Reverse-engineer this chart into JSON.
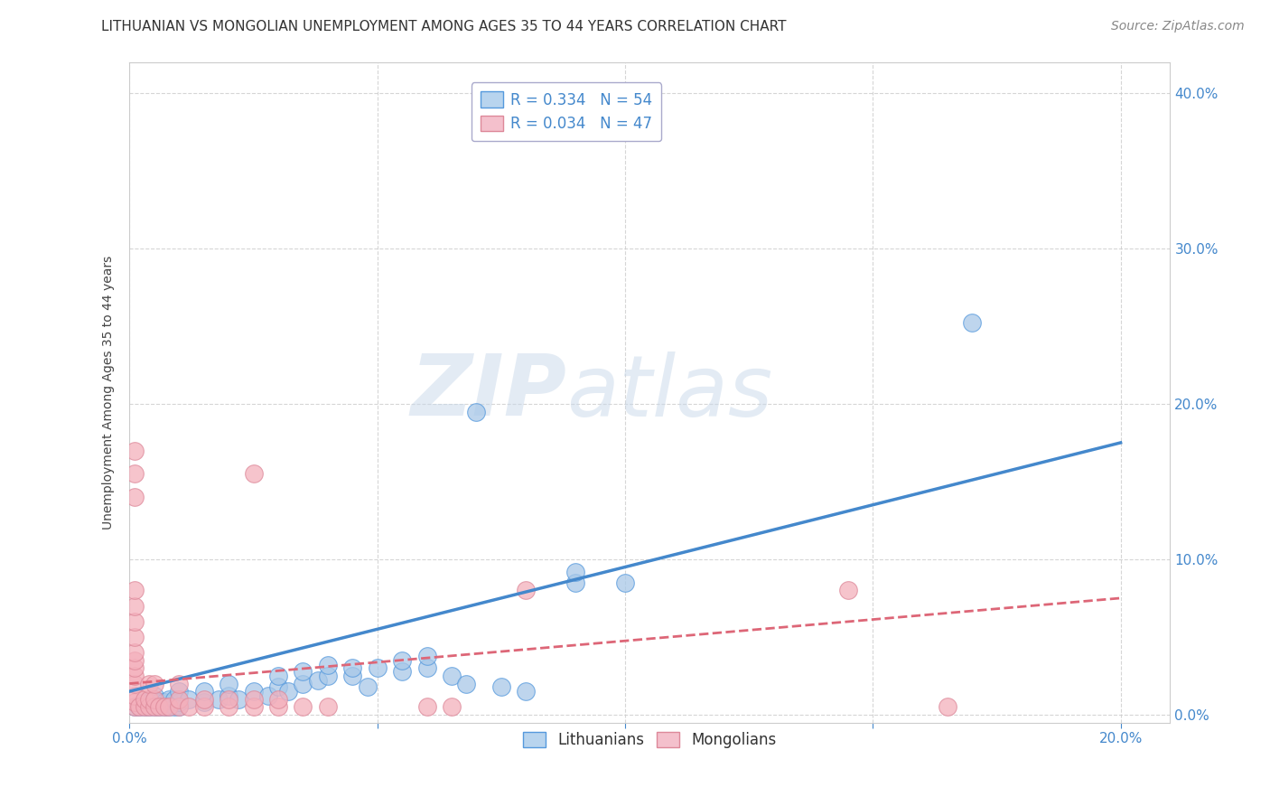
{
  "title": "LITHUANIAN VS MONGOLIAN UNEMPLOYMENT AMONG AGES 35 TO 44 YEARS CORRELATION CHART",
  "source": "Source: ZipAtlas.com",
  "xlim": [
    0.0,
    0.21
  ],
  "ylim": [
    -0.005,
    0.42
  ],
  "ylabel": "Unemployment Among Ages 35 to 44 years",
  "legend_entries": [
    {
      "label": "R = 0.334   N = 54",
      "color": "#6baed6"
    },
    {
      "label": "R = 0.034   N = 47",
      "color": "#fb9a99"
    }
  ],
  "blue_scatter": [
    [
      0.001,
      0.005
    ],
    [
      0.002,
      0.005
    ],
    [
      0.003,
      0.005
    ],
    [
      0.003,
      0.008
    ],
    [
      0.004,
      0.005
    ],
    [
      0.004,
      0.008
    ],
    [
      0.005,
      0.005
    ],
    [
      0.005,
      0.008
    ],
    [
      0.005,
      0.012
    ],
    [
      0.006,
      0.005
    ],
    [
      0.006,
      0.008
    ],
    [
      0.007,
      0.005
    ],
    [
      0.007,
      0.008
    ],
    [
      0.008,
      0.005
    ],
    [
      0.008,
      0.01
    ],
    [
      0.009,
      0.005
    ],
    [
      0.009,
      0.01
    ],
    [
      0.01,
      0.005
    ],
    [
      0.01,
      0.008
    ],
    [
      0.01,
      0.015
    ],
    [
      0.012,
      0.01
    ],
    [
      0.015,
      0.008
    ],
    [
      0.015,
      0.015
    ],
    [
      0.018,
      0.01
    ],
    [
      0.02,
      0.012
    ],
    [
      0.02,
      0.02
    ],
    [
      0.022,
      0.01
    ],
    [
      0.025,
      0.015
    ],
    [
      0.028,
      0.012
    ],
    [
      0.03,
      0.018
    ],
    [
      0.03,
      0.025
    ],
    [
      0.032,
      0.015
    ],
    [
      0.035,
      0.02
    ],
    [
      0.035,
      0.028
    ],
    [
      0.038,
      0.022
    ],
    [
      0.04,
      0.025
    ],
    [
      0.04,
      0.032
    ],
    [
      0.045,
      0.025
    ],
    [
      0.045,
      0.03
    ],
    [
      0.048,
      0.018
    ],
    [
      0.05,
      0.03
    ],
    [
      0.055,
      0.028
    ],
    [
      0.055,
      0.035
    ],
    [
      0.06,
      0.03
    ],
    [
      0.06,
      0.038
    ],
    [
      0.065,
      0.025
    ],
    [
      0.068,
      0.02
    ],
    [
      0.07,
      0.195
    ],
    [
      0.075,
      0.018
    ],
    [
      0.08,
      0.015
    ],
    [
      0.09,
      0.085
    ],
    [
      0.09,
      0.092
    ],
    [
      0.1,
      0.085
    ],
    [
      0.17,
      0.252
    ]
  ],
  "pink_scatter": [
    [
      0.001,
      0.005
    ],
    [
      0.001,
      0.008
    ],
    [
      0.001,
      0.012
    ],
    [
      0.001,
      0.02
    ],
    [
      0.001,
      0.025
    ],
    [
      0.001,
      0.03
    ],
    [
      0.001,
      0.035
    ],
    [
      0.001,
      0.04
    ],
    [
      0.001,
      0.05
    ],
    [
      0.001,
      0.06
    ],
    [
      0.001,
      0.07
    ],
    [
      0.001,
      0.08
    ],
    [
      0.001,
      0.14
    ],
    [
      0.001,
      0.155
    ],
    [
      0.001,
      0.17
    ],
    [
      0.002,
      0.005
    ],
    [
      0.003,
      0.005
    ],
    [
      0.003,
      0.01
    ],
    [
      0.004,
      0.005
    ],
    [
      0.004,
      0.01
    ],
    [
      0.004,
      0.02
    ],
    [
      0.005,
      0.005
    ],
    [
      0.005,
      0.01
    ],
    [
      0.005,
      0.02
    ],
    [
      0.006,
      0.005
    ],
    [
      0.007,
      0.005
    ],
    [
      0.008,
      0.005
    ],
    [
      0.01,
      0.005
    ],
    [
      0.01,
      0.01
    ],
    [
      0.01,
      0.02
    ],
    [
      0.012,
      0.005
    ],
    [
      0.015,
      0.005
    ],
    [
      0.015,
      0.01
    ],
    [
      0.02,
      0.005
    ],
    [
      0.02,
      0.01
    ],
    [
      0.025,
      0.005
    ],
    [
      0.025,
      0.01
    ],
    [
      0.025,
      0.155
    ],
    [
      0.03,
      0.005
    ],
    [
      0.03,
      0.01
    ],
    [
      0.035,
      0.005
    ],
    [
      0.04,
      0.005
    ],
    [
      0.06,
      0.005
    ],
    [
      0.065,
      0.005
    ],
    [
      0.08,
      0.08
    ],
    [
      0.145,
      0.08
    ],
    [
      0.165,
      0.005
    ]
  ],
  "blue_line_x": [
    0.0,
    0.2
  ],
  "blue_line_y": [
    0.015,
    0.175
  ],
  "pink_line_x": [
    0.0,
    0.2
  ],
  "pink_line_y": [
    0.02,
    0.075
  ],
  "blue_color": "#a8c8e8",
  "pink_color": "#f4b0bc",
  "blue_line_color": "#4488cc",
  "pink_line_color": "#dd6677",
  "grid_color": "#cccccc",
  "background_color": "#ffffff",
  "title_fontsize": 11,
  "axis_label_fontsize": 10,
  "tick_fontsize": 11,
  "legend_fontsize": 12,
  "source_fontsize": 10
}
